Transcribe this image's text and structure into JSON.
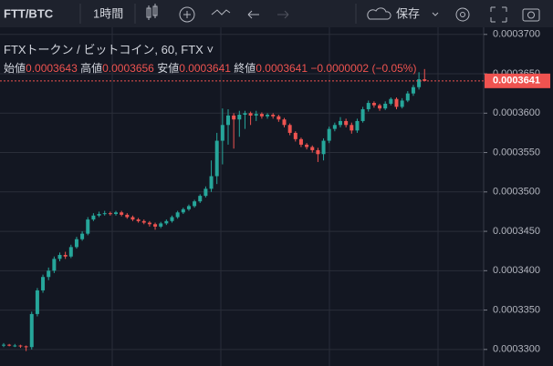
{
  "toolbar": {
    "symbol": "FTT/BTC",
    "interval": "1時間",
    "save": "保存"
  },
  "chart_data": {
    "type": "candlestick",
    "title": "FTXトークン / ビットコイン, 60, FTX",
    "legend_labels": {
      "open": "始値",
      "high": "高値",
      "low": "安値",
      "close": "終値"
    },
    "change": "−0.0000002 (−0.05%)",
    "ylim": [
      0.0003279,
      0.0003709
    ],
    "yticks": [
      {
        "value": 0.00033,
        "label": "0.0003300"
      },
      {
        "value": 0.000335,
        "label": "0.0003350"
      },
      {
        "value": 0.00034,
        "label": "0.0003400"
      },
      {
        "value": 0.000345,
        "label": "0.0003450"
      },
      {
        "value": 0.00035,
        "label": "0.0003500"
      },
      {
        "value": 0.000355,
        "label": "0.0003550"
      },
      {
        "value": 0.00036,
        "label": "0.0003600"
      },
      {
        "value": 0.000365,
        "label": "0.0003650"
      },
      {
        "value": 0.00037,
        "label": "0.0003700"
      }
    ],
    "grid": true,
    "series": [
      {
        "color_up": "#26a69a",
        "color_down": "#ef5350",
        "open": [
          0.0003305,
          0.0003306,
          0.0003305,
          0.0003305,
          0.0003304,
          0.0003303,
          0.0003345,
          0.0003375,
          0.0003392,
          0.00034,
          0.0003415,
          0.000342,
          0.0003418,
          0.000343,
          0.000344,
          0.0003447,
          0.0003465,
          0.000347,
          0.0003472,
          0.0003473,
          0.0003472,
          0.0003474,
          0.0003471,
          0.0003468,
          0.0003465,
          0.0003463,
          0.0003461,
          0.0003459,
          0.0003456,
          0.000346,
          0.0003463,
          0.0003468,
          0.0003474,
          0.0003478,
          0.0003482,
          0.0003488,
          0.0003495,
          0.0003504,
          0.000352,
          0.0003565,
          0.0003585,
          0.0003597,
          0.0003592,
          0.0003598,
          0.00036,
          0.0003597,
          0.0003599,
          0.0003596,
          0.0003598,
          0.0003596,
          0.0003592,
          0.0003585,
          0.0003575,
          0.0003567,
          0.000356,
          0.0003557,
          0.0003553,
          0.0003548,
          0.0003565,
          0.000358,
          0.0003585,
          0.000359,
          0.0003585,
          0.0003578,
          0.000359,
          0.0003605,
          0.0003613,
          0.000361,
          0.0003606,
          0.0003612,
          0.0003618,
          0.0003608,
          0.0003616,
          0.0003625,
          0.0003633,
          0.0003643
        ],
        "high": [
          0.0003308,
          0.0003307,
          0.0003307,
          0.0003306,
          0.0003305,
          0.0003348,
          0.0003378,
          0.0003395,
          0.0003404,
          0.0003418,
          0.0003423,
          0.0003424,
          0.0003433,
          0.0003443,
          0.000345,
          0.0003468,
          0.0003473,
          0.0003475,
          0.0003476,
          0.0003475,
          0.0003476,
          0.0003476,
          0.0003473,
          0.000347,
          0.0003467,
          0.0003465,
          0.0003463,
          0.0003461,
          0.0003462,
          0.0003465,
          0.000347,
          0.0003476,
          0.000348,
          0.0003484,
          0.000349,
          0.0003497,
          0.0003507,
          0.000354,
          0.0003575,
          0.0003606,
          0.0003605,
          0.00036,
          0.0003603,
          0.0003603,
          0.0003602,
          0.0003603,
          0.0003601,
          0.00036,
          0.00036,
          0.0003598,
          0.0003594,
          0.0003587,
          0.0003577,
          0.0003569,
          0.0003562,
          0.0003559,
          0.0003556,
          0.0003568,
          0.0003583,
          0.0003588,
          0.0003595,
          0.0003593,
          0.0003588,
          0.0003593,
          0.0003608,
          0.0003616,
          0.0003615,
          0.0003612,
          0.0003615,
          0.000362,
          0.000362,
          0.0003619,
          0.0003628,
          0.0003636,
          0.0003652,
          0.0003656
        ],
        "low": [
          0.0003303,
          0.0003304,
          0.0003303,
          0.0003302,
          0.0003298,
          0.00033,
          0.0003342,
          0.0003372,
          0.0003388,
          0.0003397,
          0.0003412,
          0.0003415,
          0.0003416,
          0.0003428,
          0.0003438,
          0.0003445,
          0.0003463,
          0.0003468,
          0.000347,
          0.000347,
          0.000347,
          0.0003469,
          0.0003466,
          0.0003463,
          0.0003461,
          0.0003459,
          0.0003456,
          0.0003452,
          0.0003454,
          0.0003458,
          0.0003461,
          0.0003466,
          0.0003472,
          0.0003476,
          0.000348,
          0.0003486,
          0.0003493,
          0.00035,
          0.000351,
          0.0003535,
          0.000356,
          0.0003555,
          0.000357,
          0.000358,
          0.0003585,
          0.000359,
          0.0003593,
          0.0003593,
          0.0003593,
          0.0003589,
          0.0003582,
          0.0003572,
          0.0003564,
          0.0003557,
          0.0003554,
          0.000355,
          0.0003538,
          0.000354,
          0.0003562,
          0.0003577,
          0.0003582,
          0.0003582,
          0.0003574,
          0.0003575,
          0.0003588,
          0.0003602,
          0.0003607,
          0.0003603,
          0.0003604,
          0.000361,
          0.0003605,
          0.0003606,
          0.0003614,
          0.0003622,
          0.000363,
          0.0003641
        ],
        "close": [
          0.0003306,
          0.0003305,
          0.0003305,
          0.0003304,
          0.0003303,
          0.0003345,
          0.0003375,
          0.0003392,
          0.00034,
          0.0003415,
          0.000342,
          0.0003418,
          0.000343,
          0.000344,
          0.0003447,
          0.0003465,
          0.000347,
          0.0003472,
          0.0003473,
          0.0003472,
          0.0003474,
          0.0003471,
          0.0003468,
          0.0003465,
          0.0003463,
          0.0003461,
          0.0003459,
          0.0003456,
          0.000346,
          0.0003463,
          0.0003468,
          0.0003474,
          0.0003478,
          0.0003482,
          0.0003488,
          0.0003495,
          0.0003504,
          0.000352,
          0.0003565,
          0.0003585,
          0.0003597,
          0.0003592,
          0.0003598,
          0.00036,
          0.0003597,
          0.0003599,
          0.0003596,
          0.0003598,
          0.0003596,
          0.0003592,
          0.0003585,
          0.0003575,
          0.0003567,
          0.000356,
          0.0003557,
          0.0003553,
          0.0003548,
          0.0003565,
          0.000358,
          0.0003585,
          0.000359,
          0.0003585,
          0.0003578,
          0.000359,
          0.0003605,
          0.0003613,
          0.000361,
          0.0003606,
          0.0003612,
          0.0003618,
          0.0003608,
          0.0003616,
          0.0003625,
          0.0003633,
          0.0003643,
          0.0003641
        ]
      }
    ]
  }
}
